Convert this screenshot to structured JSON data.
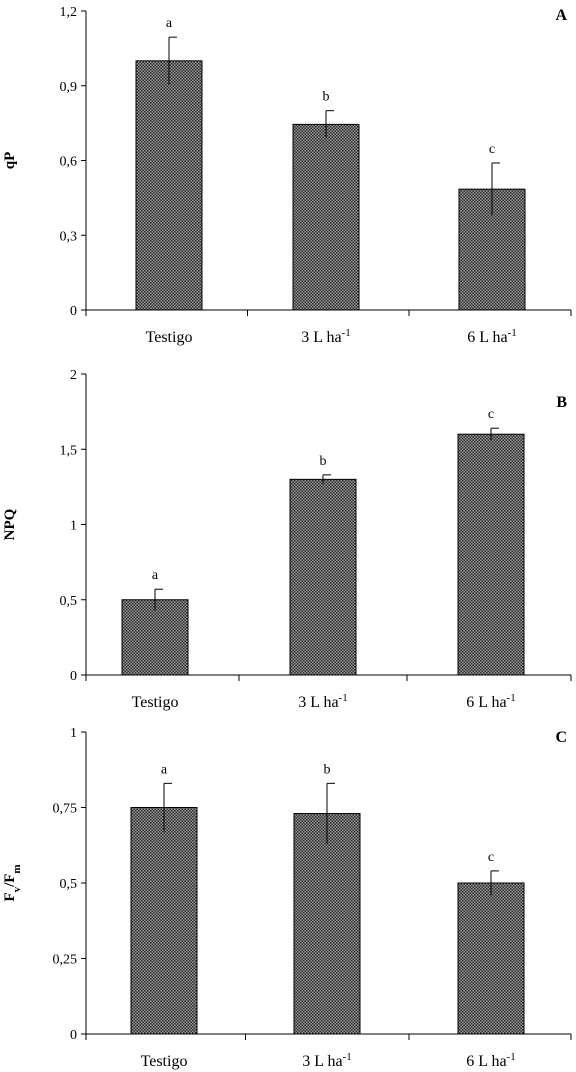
{
  "chart_data": [
    {
      "type": "bar",
      "panel": "A",
      "ylabel": "qP",
      "categories": [
        "Testigo",
        "3 L ha-1",
        "6 L ha-1"
      ],
      "values": [
        1.0,
        0.745,
        0.485
      ],
      "errors": [
        0.095,
        0.055,
        0.105
      ],
      "letters": [
        "a",
        "b",
        "c"
      ],
      "ylim": [
        0,
        1.2
      ],
      "yticks": [
        0,
        0.3,
        0.6,
        0.9,
        1.2
      ],
      "ytick_labels": [
        "0",
        "0,3",
        "0,6",
        "0,9",
        "1,2"
      ],
      "grid": false,
      "legend": "none"
    },
    {
      "type": "bar",
      "panel": "B",
      "ylabel": "NPQ",
      "categories": [
        "Testigo",
        "3 L ha-1",
        "6 L ha-1"
      ],
      "values": [
        0.5,
        1.3,
        1.6
      ],
      "errors": [
        0.07,
        0.03,
        0.04
      ],
      "letters": [
        "a",
        "b",
        "c"
      ],
      "ylim": [
        0,
        2
      ],
      "yticks": [
        0,
        0.5,
        1,
        1.5,
        2
      ],
      "ytick_labels": [
        "0",
        "0,5",
        "1",
        "1,5",
        "2"
      ],
      "grid": false,
      "legend": "none"
    },
    {
      "type": "bar",
      "panel": "C",
      "ylabel": "Fv/Fm",
      "categories": [
        "Testigo",
        "3 L ha-1",
        "6 L ha-1"
      ],
      "values": [
        0.75,
        0.73,
        0.5
      ],
      "errors": [
        0.08,
        0.1,
        0.04
      ],
      "letters": [
        "a",
        "b",
        "c"
      ],
      "ylim": [
        0,
        1
      ],
      "yticks": [
        0,
        0.25,
        0.5,
        0.75,
        1
      ],
      "ytick_labels": [
        "0",
        "0,25",
        "0,5",
        "0,75",
        "1"
      ],
      "grid": false,
      "legend": "none"
    }
  ]
}
